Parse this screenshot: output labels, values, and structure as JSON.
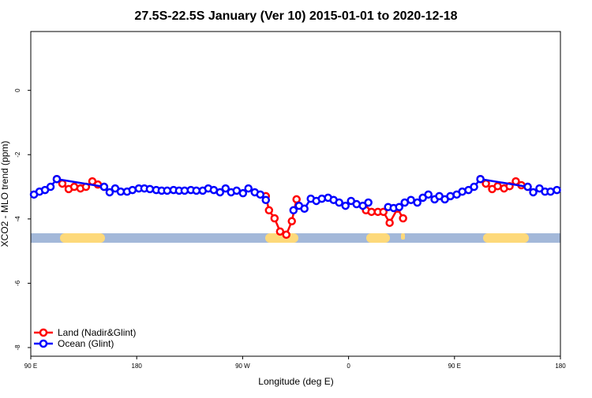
{
  "chart_data": {
    "type": "line",
    "title": "27.5S-22.5S January (Ver 10)   2015-01-01 to 2020-12-18",
    "xlabel": "Longitude (deg E)",
    "ylabel": "XCO2 - MLO trend (ppm)",
    "xlim": [
      90,
      540
    ],
    "ylim": [
      -8.27,
      1.83
    ],
    "xticks": [
      {
        "value": 90,
        "label": "90 E"
      },
      180,
      {
        "value": 270,
        "label": "90 W"
      },
      {
        "value": 360,
        "label": "0"
      },
      {
        "value": 450,
        "label": "90 E"
      },
      {
        "value": 540,
        "label": "180"
      }
    ],
    "yticks": [
      0,
      -2,
      -4,
      -6,
      -8
    ],
    "legend": "bottom-left",
    "series": [
      {
        "name": "Land (Nadir&Glint)",
        "color": "#ff0000",
        "x": [
          112.1,
          116.8,
          122.2,
          126.9,
          132.2,
          136.9,
          142.3,
          147.0,
          152.3,
          null,
          289.7,
          292.4,
          297.1,
          301.8,
          307.1,
          311.8,
          315.8,
          null,
          374.8,
          379.5,
          384.9,
          389.6,
          394.9,
          401.6,
          406.3,
          null,
          472.0,
          476.7,
          482.0,
          486.7,
          492.1,
          496.8,
          502.1,
          506.8,
          512.2
        ],
        "values": [
          -2.76,
          -2.9,
          -3.07,
          -3.0,
          -3.05,
          -3.0,
          -2.83,
          -2.93,
          -3.0,
          null,
          -3.29,
          -3.73,
          -3.98,
          -4.39,
          -4.49,
          -4.07,
          -3.39,
          null,
          -3.73,
          -3.78,
          -3.78,
          -3.78,
          -4.12,
          -3.68,
          -3.98,
          null,
          -2.76,
          -2.9,
          -3.07,
          -2.98,
          -3.05,
          -2.98,
          -2.83,
          -2.95,
          -3.0
        ]
      },
      {
        "name": "Ocean (Glint)",
        "color": "#0000ff",
        "x": [
          92.7,
          97.4,
          102.1,
          106.8,
          112.1,
          152.3,
          157.0,
          161.7,
          166.4,
          171.8,
          176.4,
          181.8,
          186.5,
          191.2,
          196.6,
          201.2,
          205.9,
          211.3,
          216.0,
          220.7,
          226.0,
          230.7,
          236.1,
          240.8,
          245.5,
          250.8,
          255.5,
          260.2,
          264.9,
          270.3,
          274.9,
          280.3,
          285.0,
          289.7,
          null,
          313.2,
          317.9,
          322.5,
          327.9,
          332.6,
          337.3,
          342.6,
          347.3,
          352.0,
          357.4,
          362.1,
          366.8,
          372.1,
          376.8,
          null,
          393.6,
          398.3,
          403.0,
          407.7,
          413.0,
          418.4,
          423.1,
          427.8,
          433.1,
          437.1,
          441.8,
          446.5,
          451.9,
          456.6,
          461.9,
          466.6,
          472.0,
          512.2,
          516.9,
          522.2,
          526.9,
          531.6,
          537.0
        ],
        "values": [
          -3.24,
          -3.15,
          -3.1,
          -3.0,
          -2.76,
          -3.0,
          -3.17,
          -3.05,
          -3.15,
          -3.15,
          -3.1,
          -3.05,
          -3.05,
          -3.07,
          -3.1,
          -3.12,
          -3.12,
          -3.1,
          -3.12,
          -3.12,
          -3.1,
          -3.12,
          -3.12,
          -3.05,
          -3.1,
          -3.17,
          -3.05,
          -3.17,
          -3.12,
          -3.2,
          -3.05,
          -3.17,
          -3.24,
          -3.41,
          null,
          -3.73,
          -3.59,
          -3.68,
          -3.37,
          -3.44,
          -3.37,
          -3.34,
          -3.41,
          -3.49,
          -3.59,
          -3.44,
          -3.54,
          -3.59,
          -3.49,
          null,
          -3.63,
          -3.66,
          -3.63,
          -3.49,
          -3.41,
          -3.49,
          -3.34,
          -3.24,
          -3.39,
          -3.29,
          -3.39,
          -3.29,
          -3.24,
          -3.15,
          -3.1,
          -3.0,
          -2.76,
          -3.0,
          -3.17,
          -3.05,
          -3.15,
          -3.15,
          -3.1
        ]
      }
    ]
  }
}
